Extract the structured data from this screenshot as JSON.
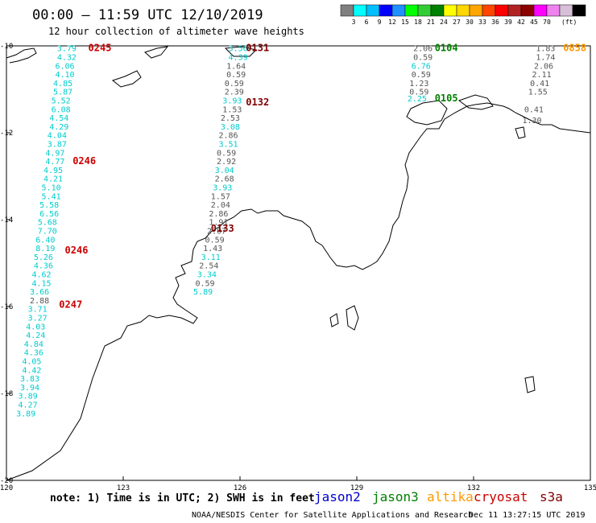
{
  "header": {
    "title": "00:00 – 11:59 UTC 12/10/2019",
    "subtitle": "12 hour collection of altimeter wave heights"
  },
  "colorbar": {
    "colors": [
      "#808080",
      "#00ffff",
      "#00bfff",
      "#0000ff",
      "#1e90ff",
      "#00ff00",
      "#32cd32",
      "#008000",
      "#ffff00",
      "#ffd700",
      "#ffa500",
      "#ff4500",
      "#ff0000",
      "#b22222",
      "#8b0000",
      "#ff00ff",
      "#ee82ee",
      "#d8bfd8",
      "#000000"
    ],
    "ticks": [
      "3",
      "6",
      "9",
      "12",
      "15",
      "18",
      "21",
      "24",
      "27",
      "30",
      "33",
      "36",
      "39",
      "42",
      "45",
      "70"
    ],
    "unit": "(ft)"
  },
  "map": {
    "lon_range": [
      120,
      135
    ],
    "lat_range": [
      -20,
      -10
    ],
    "lon_ticks": [
      "120",
      "123",
      "126",
      "129",
      "132",
      "135"
    ],
    "lat_ticks": [
      "-10",
      "-12",
      "-14",
      "-16",
      "-18",
      "-20"
    ]
  },
  "footer": {
    "note": "note: 1) Time is in UTC; 2) SWH is in feet",
    "credit": "NOAA/NESDIS Center for Satellite Applications and Research",
    "timestamp": "Dec 11 13:27:15 UTC 2019"
  },
  "satellites": [
    {
      "name": "jason2",
      "color": "#0000cc"
    },
    {
      "name": "jason3",
      "color": "#008000"
    },
    {
      "name": "altika",
      "color": "#ff9900"
    },
    {
      "name": "cryosat",
      "color": "#cc0000"
    },
    {
      "name": "s3a",
      "color": "#800000"
    }
  ],
  "tracks": [
    {
      "color": "#00cccc",
      "values": [
        {
          "lon": 121.55,
          "lat": -10.05,
          "v": "3.79"
        },
        {
          "lon": 121.55,
          "lat": -10.25,
          "v": "4.32"
        },
        {
          "lon": 121.5,
          "lat": -10.45,
          "v": "6.06"
        },
        {
          "lon": 121.5,
          "lat": -10.65,
          "v": "4.10"
        },
        {
          "lon": 121.45,
          "lat": -10.85,
          "v": "4.85"
        },
        {
          "lon": 121.45,
          "lat": -11.05,
          "v": "5.87"
        },
        {
          "lon": 121.4,
          "lat": -11.25,
          "v": "5.52"
        },
        {
          "lon": 121.4,
          "lat": -11.45,
          "v": "6.08"
        },
        {
          "lon": 121.35,
          "lat": -11.65,
          "v": "4.54"
        },
        {
          "lon": 121.35,
          "lat": -11.85,
          "v": "4.29"
        },
        {
          "lon": 121.3,
          "lat": -12.05,
          "v": "4.04"
        },
        {
          "lon": 121.3,
          "lat": -12.25,
          "v": "3.87"
        },
        {
          "lon": 121.25,
          "lat": -12.45,
          "v": "4.97"
        },
        {
          "lon": 121.25,
          "lat": -12.65,
          "v": "4.77"
        },
        {
          "lon": 121.2,
          "lat": -12.85,
          "v": "4.95"
        },
        {
          "lon": 121.2,
          "lat": -13.05,
          "v": "4.21"
        },
        {
          "lon": 121.15,
          "lat": -13.25,
          "v": "5.10"
        },
        {
          "lon": 121.15,
          "lat": -13.45,
          "v": "5.41"
        },
        {
          "lon": 121.1,
          "lat": -13.65,
          "v": "5.58"
        },
        {
          "lon": 121.1,
          "lat": -13.85,
          "v": "6.56"
        },
        {
          "lon": 121.05,
          "lat": -14.05,
          "v": "5.68"
        },
        {
          "lon": 121.05,
          "lat": -14.25,
          "v": "7.70"
        },
        {
          "lon": 121.0,
          "lat": -14.45,
          "v": "6.40"
        },
        {
          "lon": 121.0,
          "lat": -14.65,
          "v": "8.19"
        },
        {
          "lon": 120.95,
          "lat": -14.85,
          "v": "5.26"
        },
        {
          "lon": 120.95,
          "lat": -15.05,
          "v": "4.36"
        },
        {
          "lon": 120.9,
          "lat": -15.25,
          "v": "4.62"
        },
        {
          "lon": 120.9,
          "lat": -15.45,
          "v": "4.15"
        },
        {
          "lon": 120.85,
          "lat": -15.65,
          "v": "3.66"
        },
        {
          "lon": 120.85,
          "lat": -15.85,
          "v": "2.88",
          "color": "#555555"
        },
        {
          "lon": 120.8,
          "lat": -16.05,
          "v": "3.71"
        },
        {
          "lon": 120.8,
          "lat": -16.25,
          "v": "3.27"
        },
        {
          "lon": 120.75,
          "lat": -16.45,
          "v": "4.03"
        },
        {
          "lon": 120.75,
          "lat": -16.65,
          "v": "4.24"
        },
        {
          "lon": 120.7,
          "lat": -16.85,
          "v": "4.84"
        },
        {
          "lon": 120.7,
          "lat": -17.05,
          "v": "4.36"
        },
        {
          "lon": 120.65,
          "lat": -17.25,
          "v": "4.05"
        },
        {
          "lon": 120.65,
          "lat": -17.45,
          "v": "4.42"
        },
        {
          "lon": 120.6,
          "lat": -17.65,
          "v": "3.83"
        },
        {
          "lon": 120.6,
          "lat": -17.85,
          "v": "3.94"
        },
        {
          "lon": 120.55,
          "lat": -18.05,
          "v": "3.89"
        },
        {
          "lon": 120.55,
          "lat": -18.25,
          "v": "4.27"
        },
        {
          "lon": 120.5,
          "lat": -18.45,
          "v": "3.89"
        }
      ]
    },
    {
      "color": "#555555",
      "values": [
        {
          "lon": 125.95,
          "lat": -10.05,
          "v": "3.56",
          "color": "#00cccc"
        },
        {
          "lon": 125.95,
          "lat": -10.25,
          "v": "4.39",
          "color": "#00cccc"
        },
        {
          "lon": 125.9,
          "lat": -10.45,
          "v": "1.64"
        },
        {
          "lon": 125.9,
          "lat": -10.65,
          "v": "0.59"
        },
        {
          "lon": 125.85,
          "lat": -10.85,
          "v": "0.59"
        },
        {
          "lon": 125.85,
          "lat": -11.05,
          "v": "2.39"
        },
        {
          "lon": 125.8,
          "lat": -11.25,
          "v": "3.93",
          "color": "#00cccc"
        },
        {
          "lon": 125.8,
          "lat": -11.45,
          "v": "1.53"
        },
        {
          "lon": 125.75,
          "lat": -11.65,
          "v": "2.53"
        },
        {
          "lon": 125.75,
          "lat": -11.85,
          "v": "3.08",
          "color": "#00cccc"
        },
        {
          "lon": 125.7,
          "lat": -12.05,
          "v": "2.86"
        },
        {
          "lon": 125.7,
          "lat": -12.25,
          "v": "3.51",
          "color": "#00cccc"
        },
        {
          "lon": 125.65,
          "lat": -12.45,
          "v": "0.59"
        },
        {
          "lon": 125.65,
          "lat": -12.65,
          "v": "2.92"
        },
        {
          "lon": 125.6,
          "lat": -12.85,
          "v": "3.04",
          "color": "#00cccc"
        },
        {
          "lon": 125.6,
          "lat": -13.05,
          "v": "2.68"
        },
        {
          "lon": 125.55,
          "lat": -13.25,
          "v": "3.93",
          "color": "#00cccc"
        },
        {
          "lon": 125.5,
          "lat": -13.45,
          "v": "1.57"
        },
        {
          "lon": 125.5,
          "lat": -13.65,
          "v": "2.04"
        },
        {
          "lon": 125.45,
          "lat": -13.85,
          "v": "2.86"
        },
        {
          "lon": 125.45,
          "lat": -14.05,
          "v": "1.91"
        },
        {
          "lon": 125.4,
          "lat": -14.25,
          "v": "2.07"
        },
        {
          "lon": 125.35,
          "lat": -14.45,
          "v": "0.59"
        },
        {
          "lon": 125.3,
          "lat": -14.65,
          "v": "1.43"
        },
        {
          "lon": 125.25,
          "lat": -14.85,
          "v": "3.11",
          "color": "#00cccc"
        },
        {
          "lon": 125.2,
          "lat": -15.05,
          "v": "2.54"
        },
        {
          "lon": 125.15,
          "lat": -15.25,
          "v": "3.34",
          "color": "#00cccc"
        },
        {
          "lon": 125.1,
          "lat": -15.45,
          "v": "0.59"
        },
        {
          "lon": 125.05,
          "lat": -15.65,
          "v": "5.89",
          "color": "#00cccc"
        }
      ]
    },
    {
      "color": "#555555",
      "values": [
        {
          "lon": 130.7,
          "lat": -10.05,
          "v": "2.06"
        },
        {
          "lon": 130.7,
          "lat": -10.25,
          "v": "0.59"
        },
        {
          "lon": 130.65,
          "lat": -10.45,
          "v": "6.76",
          "color": "#00cccc"
        },
        {
          "lon": 130.65,
          "lat": -10.65,
          "v": "0.59"
        },
        {
          "lon": 130.6,
          "lat": -10.85,
          "v": "1.23"
        },
        {
          "lon": 130.6,
          "lat": -11.05,
          "v": "0.59"
        },
        {
          "lon": 130.55,
          "lat": -11.2,
          "v": "2.25",
          "color": "#00cccc"
        }
      ]
    },
    {
      "color": "#555555",
      "values": [
        {
          "lon": 133.85,
          "lat": -10.05,
          "v": "1.83"
        },
        {
          "lon": 133.85,
          "lat": -10.25,
          "v": "1.74"
        },
        {
          "lon": 133.8,
          "lat": -10.45,
          "v": "2.06"
        },
        {
          "lon": 133.75,
          "lat": -10.65,
          "v": "2.11"
        },
        {
          "lon": 133.7,
          "lat": -10.85,
          "v": "0.41"
        },
        {
          "lon": 133.65,
          "lat": -11.05,
          "v": "1.55"
        },
        {
          "lon": 133.55,
          "lat": -11.45,
          "v": "0.41"
        },
        {
          "lon": 133.5,
          "lat": -11.7,
          "v": "1.30"
        }
      ]
    }
  ],
  "passes": [
    {
      "lon": 122.4,
      "lat": -10.05,
      "label": "0245",
      "color": "#cc0000"
    },
    {
      "lon": 126.45,
      "lat": -10.05,
      "label": "0131",
      "color": "#800000"
    },
    {
      "lon": 126.45,
      "lat": -11.3,
      "label": "0132",
      "color": "#800000"
    },
    {
      "lon": 122.0,
      "lat": -12.65,
      "label": "0246",
      "color": "#cc0000"
    },
    {
      "lon": 121.8,
      "lat": -14.7,
      "label": "0246",
      "color": "#cc0000"
    },
    {
      "lon": 121.65,
      "lat": -15.95,
      "label": "0247",
      "color": "#cc0000"
    },
    {
      "lon": 125.55,
      "lat": -14.2,
      "label": "0133",
      "color": "#800000"
    },
    {
      "lon": 131.3,
      "lat": -10.05,
      "label": "0104",
      "color": "#008000"
    },
    {
      "lon": 131.3,
      "lat": -11.2,
      "label": "0105",
      "color": "#008000"
    },
    {
      "lon": 134.6,
      "lat": -10.05,
      "label": "0858",
      "color": "#ff9900"
    }
  ]
}
